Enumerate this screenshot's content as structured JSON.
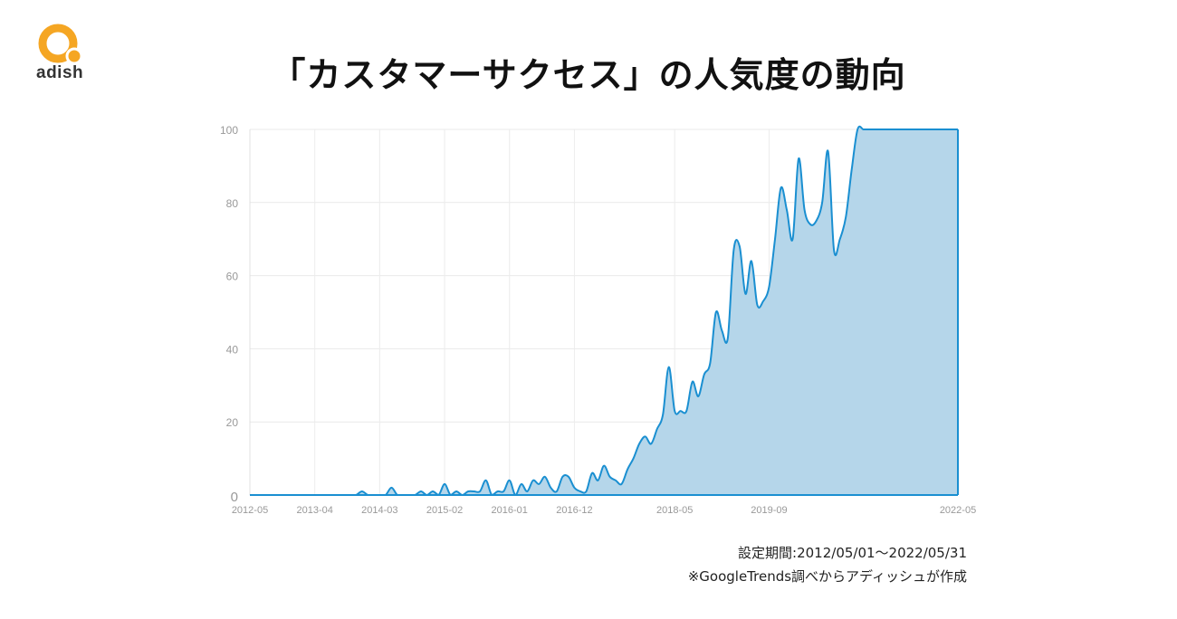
{
  "brand": {
    "name": "adish",
    "color": "#f5a623"
  },
  "title": "「カスタマーサクセス」の人気度の動向",
  "notes": {
    "period": "設定期間:2012/05/01～2022/05/31",
    "source": "※GoogleTrends調べからアディッシュが作成"
  },
  "chart_data": {
    "type": "area",
    "title": "",
    "xlabel": "",
    "ylabel": "",
    "ylim": [
      0,
      100
    ],
    "yticks": [
      "0",
      "20",
      "40",
      "60",
      "80",
      "100"
    ],
    "xticks": [
      {
        "label": "2012-05",
        "x": 0
      },
      {
        "label": "2013-04",
        "x": 11
      },
      {
        "label": "2014-03",
        "x": 22
      },
      {
        "label": "2015-02",
        "x": 33
      },
      {
        "label": "2016-01",
        "x": 44
      },
      {
        "label": "2016-12",
        "x": 55
      },
      {
        "label": "2018-05",
        "x": 72
      },
      {
        "label": "2019-09",
        "x": 88
      },
      {
        "label": "2022-05",
        "x": 120
      }
    ],
    "grid": true,
    "line_color": "#1a8fd1",
    "fill_color": "#b5d6ea",
    "x": [
      0,
      1,
      2,
      3,
      4,
      5,
      6,
      7,
      8,
      9,
      10,
      11,
      12,
      13,
      14,
      15,
      16,
      17,
      18,
      19,
      20,
      21,
      22,
      23,
      24,
      25,
      26,
      27,
      28,
      29,
      30,
      31,
      32,
      33,
      34,
      35,
      36,
      37,
      38,
      39,
      40,
      41,
      42,
      43,
      44,
      45,
      46,
      47,
      48,
      49,
      50,
      51,
      52,
      53,
      54,
      55,
      56,
      57,
      58,
      59,
      60,
      61,
      62,
      63,
      64,
      65,
      66,
      67,
      68,
      69,
      70,
      71,
      72,
      73,
      74,
      75,
      76,
      77,
      78,
      79,
      80,
      81,
      82,
      83,
      84,
      85,
      86,
      87,
      88,
      89,
      90,
      91,
      92,
      93,
      94,
      95,
      96,
      97,
      98,
      99,
      100,
      101,
      102,
      103,
      104,
      105,
      106,
      107,
      108,
      109,
      110,
      111,
      112,
      113,
      114,
      115,
      116,
      117,
      118,
      119,
      120
    ],
    "values": [
      0,
      0,
      0,
      0,
      0,
      0,
      0,
      0,
      0,
      0,
      0,
      0,
      0,
      0,
      0,
      0,
      0,
      0,
      0,
      1,
      0,
      0,
      0,
      0,
      2,
      0,
      0,
      0,
      0,
      1,
      0,
      1,
      0,
      3,
      0,
      1,
      0,
      1,
      1,
      1,
      4,
      0,
      1,
      1,
      4,
      0,
      3,
      1,
      4,
      3,
      5,
      2,
      1,
      5,
      5,
      2,
      1,
      1,
      6,
      4,
      8,
      5,
      4,
      3,
      7,
      10,
      14,
      16,
      14,
      18,
      22,
      35,
      23,
      23,
      23,
      31,
      27,
      33,
      36,
      50,
      45,
      43,
      67,
      68,
      55,
      64,
      52,
      53,
      57,
      70,
      84,
      78,
      70,
      92,
      78,
      74,
      75,
      80,
      94,
      67,
      70,
      76,
      89,
      100,
      100,
      100,
      100,
      100,
      100,
      100,
      100,
      100,
      100,
      100,
      100,
      100,
      100,
      100,
      100,
      100,
      100
    ]
  }
}
